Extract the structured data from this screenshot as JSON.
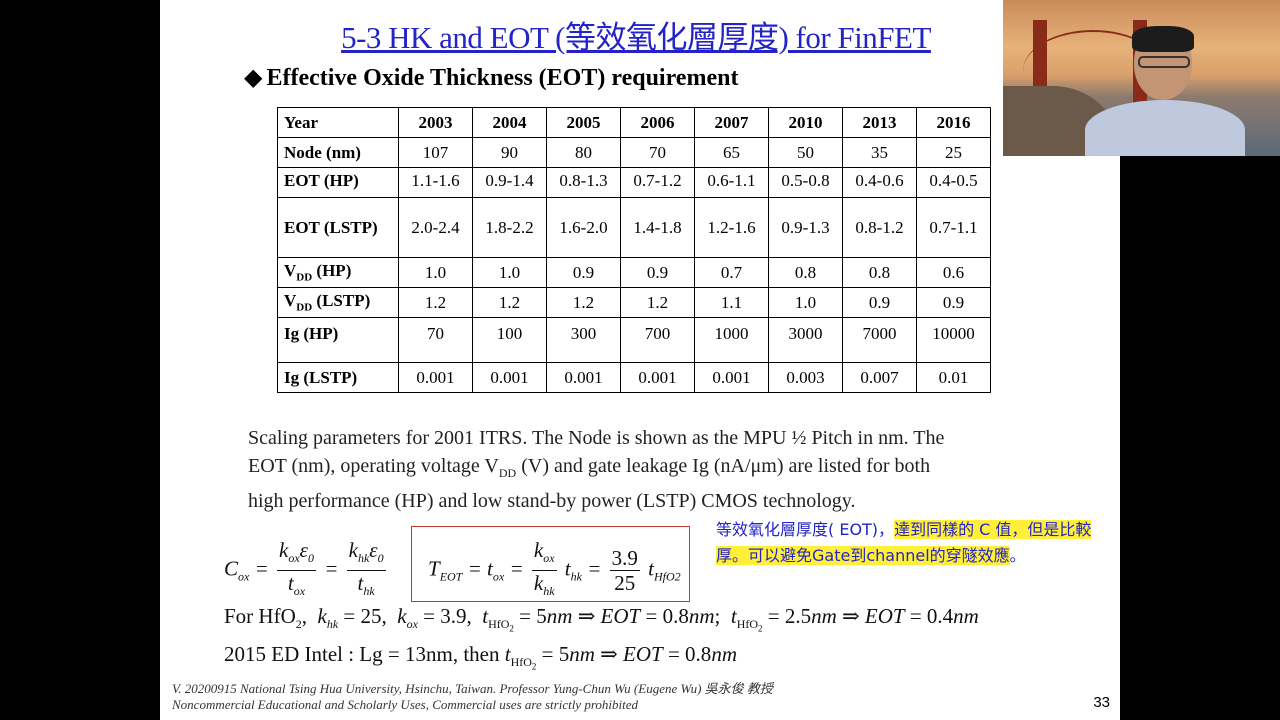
{
  "slide": {
    "title": "5-3 HK and EOT (等效氧化層厚度) for FinFET",
    "heading": "Effective Oxide Thickness (EOT) requirement",
    "page_number": "33"
  },
  "table": {
    "header_label": "Year",
    "years": [
      "2003",
      "2004",
      "2005",
      "2006",
      "2007",
      "2010",
      "2013",
      "2016"
    ],
    "rows": [
      {
        "label": "Node (nm)",
        "values": [
          "107",
          "90",
          "80",
          "70",
          "65",
          "50",
          "35",
          "25"
        ]
      },
      {
        "label": "EOT (HP)",
        "values": [
          "1.1-1.6",
          "0.9-1.4",
          "0.8-1.3",
          "0.7-1.2",
          "0.6-1.1",
          "0.5-0.8",
          "0.4-0.6",
          "0.4-0.5"
        ]
      },
      {
        "label": "EOT (LSTP)",
        "values": [
          "2.0-2.4",
          "1.8-2.2",
          "1.6-2.0",
          "1.4-1.8",
          "1.2-1.6",
          "0.9-1.3",
          "0.8-1.2",
          "0.7-1.1"
        ]
      },
      {
        "label_prefix": "V",
        "label_sub": "DD",
        "label_suffix": " (HP)",
        "values": [
          "1.0",
          "1.0",
          "0.9",
          "0.9",
          "0.7",
          "0.8",
          "0.8",
          "0.6"
        ]
      },
      {
        "label_prefix": "V",
        "label_sub": "DD",
        "label_suffix": " (LSTP)",
        "values": [
          "1.2",
          "1.2",
          "1.2",
          "1.2",
          "1.1",
          "1.0",
          "0.9",
          "0.9"
        ]
      },
      {
        "label": "Ig   (HP)",
        "values": [
          "70",
          "100",
          "300",
          "700",
          "1000",
          "3000",
          "7000",
          "10000"
        ]
      },
      {
        "label": "Ig  (LSTP)",
        "values": [
          "0.001",
          "0.001",
          "0.001",
          "0.001",
          "0.001",
          "0.003",
          "0.007",
          "0.01"
        ]
      }
    ]
  },
  "caption": {
    "line1": "Scaling parameters for 2001 ITRS. The Node is shown as the MPU ½ Pitch in nm. The",
    "line2_a": "EOT (nm), operating voltage V",
    "line2_sub": "DD",
    "line2_b": " (V) and gate leakage Ig (nA/μm) are listed for both",
    "line3": "high performance (HP) and low stand-by power (LSTP) CMOS technology."
  },
  "note": {
    "part1": "等效氧化層厚度( EOT)，",
    "part2": "達到同樣的 C 值，但是比較厚。可以避免Gate到channel的穿隧效應",
    "part3": "。"
  },
  "equations": {
    "hfo2_line": "For HfO₂,  k_hk = 25,  k_ox = 3.9,  t_HfO₂ = 5nm ⇒ EOT = 0.8nm;  t_HfO₂ = 2.5nm ⇒ EOT = 0.4nm",
    "intel_line": "2015 ED Intel : Lg = 13nm, then t_HfO₂ = 5nm ⇒ EOT = 0.8nm"
  },
  "footer": {
    "line1": "V. 20200915 National Tsing Hua University, Hsinchu, Taiwan. Professor Yung-Chun Wu (Eugene Wu) 吳永俊 教授",
    "line2": "Noncommercial Educational and Scholarly Uses, Commercial uses are strictly prohibited"
  },
  "colors": {
    "title": "#2323c8",
    "highlight": "#ffef3a",
    "box_border": "#c0392b"
  }
}
